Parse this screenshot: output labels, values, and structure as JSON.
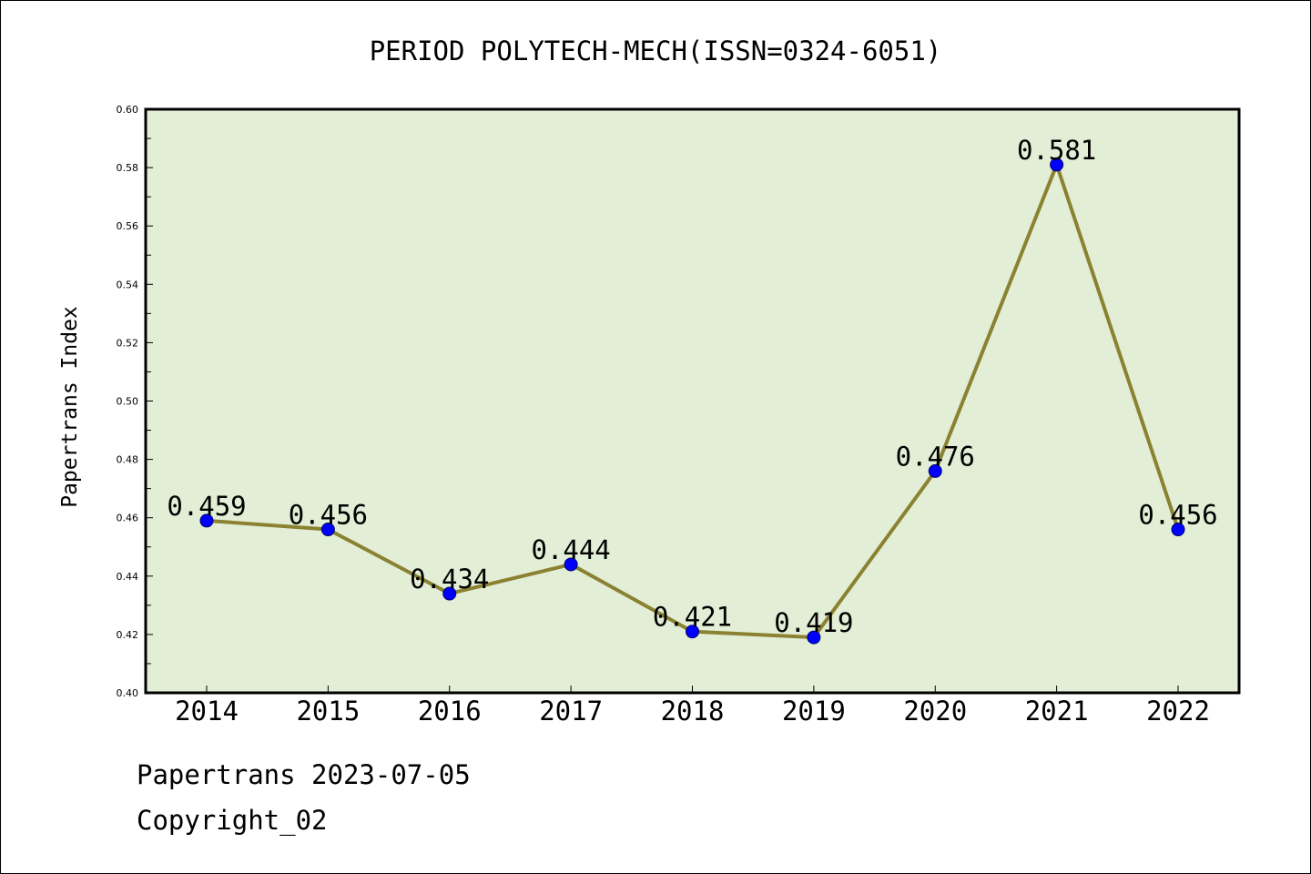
{
  "chart_data": {
    "type": "line",
    "title": "PERIOD POLYTECH-MECH(ISSN=0324-6051)",
    "xlabel": "",
    "ylabel": "Papertrans Index",
    "categories": [
      "2014",
      "2015",
      "2016",
      "2017",
      "2018",
      "2019",
      "2020",
      "2021",
      "2022"
    ],
    "series": [
      {
        "values": [
          0.459,
          0.456,
          0.434,
          0.444,
          0.421,
          0.419,
          0.476,
          0.581,
          0.456
        ]
      }
    ],
    "data_labels": [
      "0.459",
      "0.456",
      "0.434",
      "0.444",
      "0.421",
      "0.419",
      "0.476",
      "0.581",
      "0.456"
    ],
    "ylim": [
      0.4,
      0.6
    ],
    "yticks": [
      "0.40",
      "0.42",
      "0.44",
      "0.46",
      "0.48",
      "0.50",
      "0.52",
      "0.54",
      "0.56",
      "0.58",
      "0.60"
    ],
    "grid": false,
    "legend": "none",
    "colors": {
      "plot_background": "#e2efd6",
      "line": "#8b8132",
      "marker": "#0000ff",
      "axis": "#000000"
    }
  },
  "footer": {
    "line1": "Papertrans 2023-07-05",
    "line2": "Copyright_02"
  }
}
